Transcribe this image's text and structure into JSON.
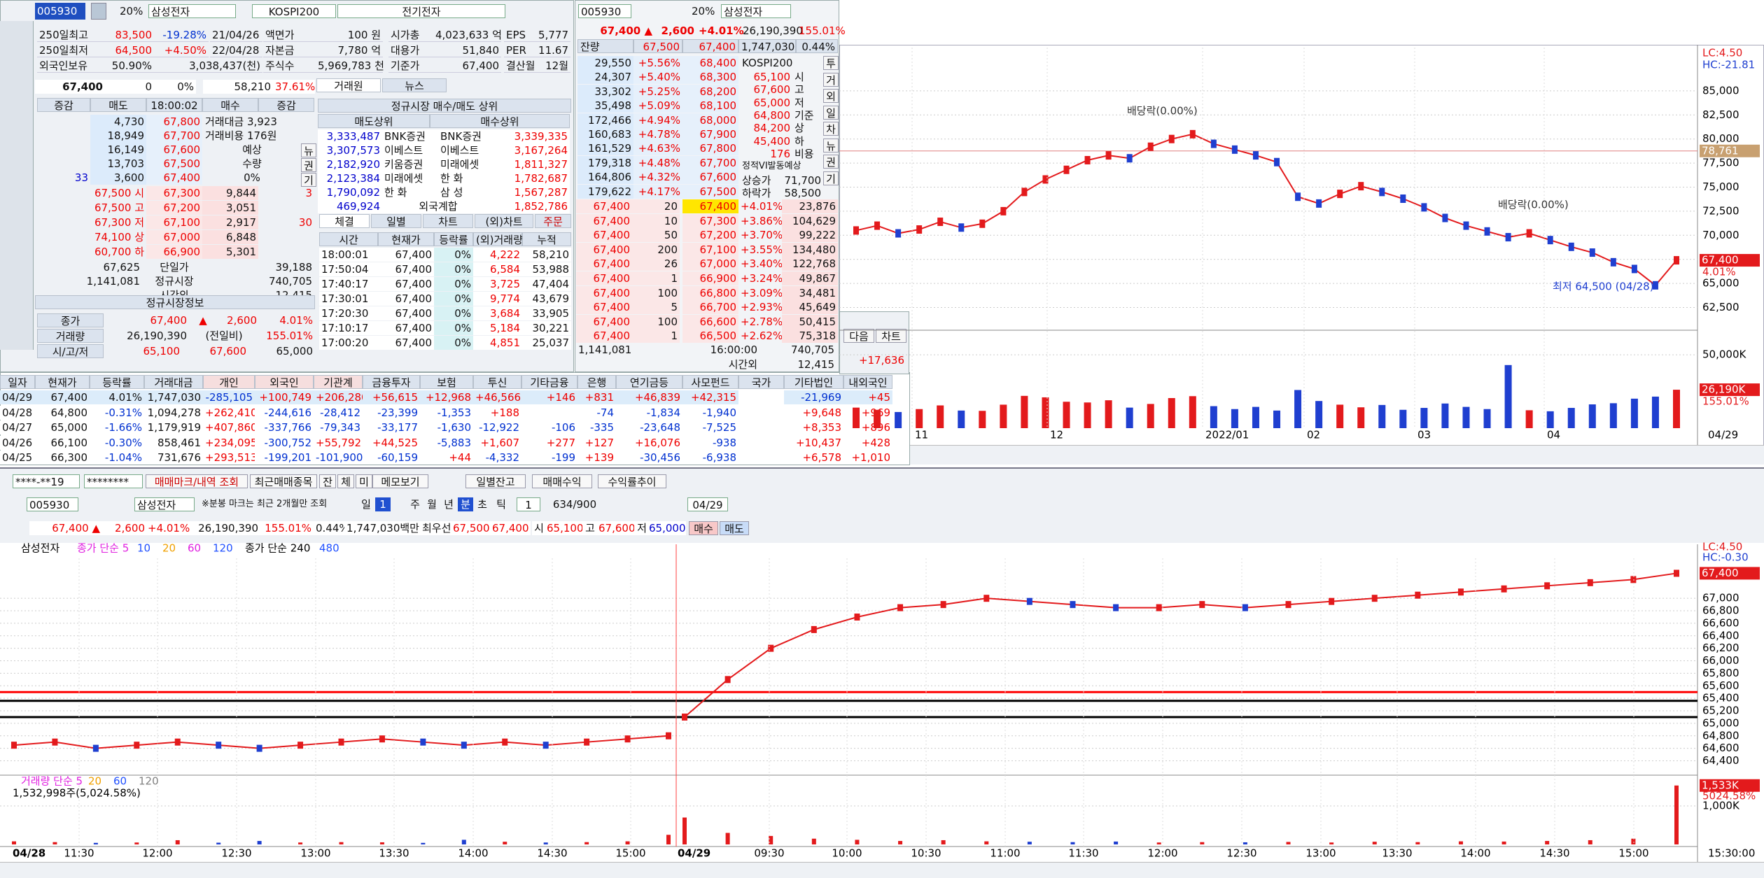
{
  "left_panel": {
    "code": "005930",
    "limit": "20%",
    "name": "삼성전자",
    "index": "KOSPI200",
    "sector": "전기전자",
    "info": [
      [
        "250일최고",
        "83,500",
        "-19.28%",
        "21/04/26",
        "액면가",
        "100 원",
        "시가총",
        "4,023,633 억",
        "EPS",
        "5,777"
      ],
      [
        "250일최저",
        "64,500",
        "+4.50%",
        "22/04/28",
        "자본금",
        "7,780 억",
        "대용가",
        "51,840",
        "PER",
        "11.67"
      ],
      [
        "외국인보유",
        "50.90%",
        "3,038,437(천)",
        "주식수",
        "5,969,783 천",
        "기준가",
        "67,400",
        "결산월",
        "12월"
      ]
    ],
    "quote": [
      "67,400",
      "0",
      "0%",
      "58,210",
      "37.61%"
    ],
    "tabs": [
      "거래원",
      "뉴스"
    ],
    "book_headers": [
      "증감",
      "매도",
      "18:00:02",
      "매수",
      "증감"
    ],
    "asks": [
      [
        null,
        "4,730",
        "67,800"
      ],
      [
        null,
        "18,949",
        "67,700"
      ],
      [
        null,
        "16,149",
        "67,600"
      ],
      [
        null,
        "13,703",
        "67,500"
      ],
      [
        "33",
        "3,600",
        "67,400"
      ]
    ],
    "ask_side": [
      "거래대금 3,923",
      "거래비용 176원",
      "예상",
      "수량",
      "0%"
    ],
    "side_buttons": [
      "뉴",
      "권",
      "기"
    ],
    "bids": [
      [
        "67,500 시",
        "67,300",
        "9,844",
        "3"
      ],
      [
        "67,500 고",
        "67,200",
        "3,051",
        null
      ],
      [
        "67,300 저",
        "67,100",
        "2,917",
        "30"
      ],
      [
        "74,100 상",
        "67,000",
        "6,848",
        null
      ],
      [
        "60,700 하",
        "66,900",
        "5,301",
        null
      ]
    ],
    "book_footer": [
      [
        "67,625",
        "단일가",
        "39,188"
      ],
      [
        "1,141,081",
        "정규시장",
        "740,705"
      ],
      [
        null,
        "시간외",
        "12,415"
      ]
    ],
    "market_title": "정규시장정보",
    "market": [
      [
        "종가",
        "67,400",
        "▲",
        "2,600",
        "4.01%"
      ],
      [
        "거래량",
        "26,190,390",
        "(전일비)",
        "155.01%"
      ],
      [
        "시/고/저",
        "65,100",
        "67,600",
        "65,000"
      ]
    ],
    "broker_title": "정규시장 매수/매도 상위",
    "broker_headers": [
      "매도상위",
      "매수상위"
    ],
    "brokers": [
      [
        "3,333,487",
        "BNK증권",
        "BNK증권",
        "3,339,335"
      ],
      [
        "3,307,573",
        "이베스트",
        "이베스트",
        "3,167,264"
      ],
      [
        "2,182,920",
        "키움증권",
        "미래에셋",
        "1,811,327"
      ],
      [
        "2,123,384",
        "미래에셋",
        "한 화",
        "1,782,687"
      ],
      [
        "1,790,092",
        "한 화",
        "삼 성",
        "1,567,287"
      ]
    ],
    "broker_footer": [
      "469,924",
      "외국계합",
      "1,852,786"
    ],
    "trade_tabs": [
      "체결",
      "일별",
      "차트",
      "(외)차트",
      "주문"
    ],
    "trade_headers": [
      "시간",
      "현재가",
      "등락률",
      "(외)거래량",
      "누적"
    ],
    "trades": [
      [
        "18:00:01",
        "67,400",
        "0%",
        "4,222",
        "58,210"
      ],
      [
        "17:50:04",
        "67,400",
        "0%",
        "6,584",
        "53,988"
      ],
      [
        "17:40:17",
        "67,400",
        "0%",
        "3,725",
        "47,404"
      ],
      [
        "17:30:01",
        "67,400",
        "0%",
        "9,774",
        "43,679"
      ],
      [
        "17:20:30",
        "67,400",
        "0%",
        "3,684",
        "33,905"
      ],
      [
        "17:10:17",
        "67,400",
        "0%",
        "5,184",
        "30,221"
      ],
      [
        "17:00:20",
        "67,400",
        "0%",
        "4,851",
        "25,037"
      ]
    ]
  },
  "order_panel": {
    "code": "005930",
    "limit": "20%",
    "name": "삼성전자",
    "quote": [
      "67,400 ▲",
      "2,600",
      "+4.01%",
      "26,190,390",
      "155.01%"
    ],
    "header": [
      "잔량",
      "67,500",
      "67,400",
      "1,747,030",
      "0.44%"
    ],
    "asks": [
      [
        "29,550",
        "+5.56%",
        "68,400"
      ],
      [
        "24,307",
        "+5.40%",
        "68,300"
      ],
      [
        "33,302",
        "+5.25%",
        "68,200"
      ],
      [
        "35,498",
        "+5.09%",
        "68,100"
      ],
      [
        "172,466",
        "+4.94%",
        "68,000"
      ],
      [
        "160,683",
        "+4.78%",
        "67,900"
      ],
      [
        "161,529",
        "+4.63%",
        "67,800"
      ],
      [
        "179,318",
        "+4.48%",
        "67,700"
      ],
      [
        "164,806",
        "+4.32%",
        "67,600"
      ],
      [
        "179,622",
        "+4.17%",
        "67,500"
      ]
    ],
    "index": "KOSPI200",
    "info": [
      [
        "65,100",
        "시"
      ],
      [
        "67,600",
        "고"
      ],
      [
        "65,000",
        "저"
      ],
      [
        "64,800",
        "기준"
      ],
      [
        "84,200",
        "상"
      ],
      [
        "45,400",
        "하"
      ],
      [
        "176",
        "비용"
      ]
    ],
    "vi_title": "정적VI발동예상",
    "vi": [
      [
        "상승가",
        "71,700"
      ],
      [
        "하락가",
        "58,500"
      ]
    ],
    "side_buttons": [
      "투",
      "거",
      "외",
      "일",
      "차",
      "뉴",
      "권",
      "기"
    ],
    "bids": [
      [
        "67,400",
        "20",
        "67,400",
        "+4.01%",
        "23,876"
      ],
      [
        "67,400",
        "10",
        "67,300",
        "+3.86%",
        "104,629"
      ],
      [
        "67,400",
        "50",
        "67,200",
        "+3.70%",
        "99,222"
      ],
      [
        "67,400",
        "200",
        "67,100",
        "+3.55%",
        "134,480"
      ],
      [
        "67,400",
        "26",
        "67,000",
        "+3.40%",
        "122,768"
      ],
      [
        "67,400",
        "1",
        "66,900",
        "+3.24%",
        "49,867"
      ],
      [
        "67,400",
        "100",
        "66,800",
        "+3.09%",
        "34,481"
      ],
      [
        "67,400",
        "5",
        "66,700",
        "+2.93%",
        "45,649"
      ],
      [
        "67,400",
        "100",
        "66,600",
        "+2.78%",
        "50,415"
      ],
      [
        "67,400",
        "1",
        "66,500",
        "+2.62%",
        "75,318"
      ]
    ],
    "footer": [
      [
        "1,141,081",
        "16:00:00",
        "740,705"
      ],
      [
        null,
        "시간외",
        "12,415"
      ]
    ],
    "buttons": [
      "다음",
      "차트"
    ],
    "extra": "+17,636"
  },
  "investor_table": {
    "headers": [
      "일자",
      "현재가",
      "등락률",
      "거래대금",
      "개인",
      "외국인",
      "기관계",
      "금융투자",
      "보험",
      "투신",
      "기타금융",
      "은행",
      "연기금등",
      "사모펀드",
      "국가",
      "기타법인",
      "내외국인"
    ],
    "rows": [
      [
        "04/29",
        "67,400",
        "4.01%",
        "1,747,030",
        "-285,105",
        "+100,749",
        "+206,280",
        "+56,615",
        "+12,968",
        "+46,566",
        "+146",
        "+831",
        "+46,839",
        "+42,315",
        null,
        "-21,969",
        "+45"
      ],
      [
        "04/28",
        "64,800",
        "-0.31%",
        "1,094,278",
        "+262,410",
        "-244,616",
        "-28,412",
        "-23,399",
        "-1,353",
        "+188",
        null,
        "-74",
        "-1,834",
        "-1,940",
        null,
        "+9,648",
        "+969"
      ],
      [
        "04/27",
        "65,000",
        "-1.66%",
        "1,179,919",
        "+407,860",
        "-337,766",
        "-79,343",
        "-33,177",
        "-1,630",
        "-12,922",
        "-106",
        "-335",
        "-23,648",
        "-7,525",
        null,
        "+8,353",
        "+896"
      ],
      [
        "04/26",
        "66,100",
        "-0.30%",
        "858,461",
        "+234,095",
        "-300,752",
        "+55,792",
        "+44,525",
        "-5,883",
        "+1,607",
        "+277",
        "+127",
        "+16,076",
        "-938",
        null,
        "+10,437",
        "+428"
      ],
      [
        "04/25",
        "66,300",
        "-1.04%",
        "731,676",
        "+293,513",
        "-199,201",
        "-101,900",
        "-60,159",
        "+44",
        "-4,332",
        "-199",
        "+139",
        "-30,456",
        "-6,938",
        null,
        "+6,578",
        "+1,010"
      ]
    ]
  },
  "daily_chart": {
    "type": "line",
    "color": "#e31a1c",
    "lc": "LC:4.50",
    "hc": "HC:-21.81",
    "ylim": [
      60500,
      89500
    ],
    "yticks": [
      {
        "value": 62500,
        "label": "62,500"
      },
      {
        "value": 65000,
        "label": "65,000"
      },
      {
        "value": 67500,
        "label": "67,500"
      },
      {
        "value": 70000,
        "label": "70,000"
      },
      {
        "value": 72500,
        "label": "72,500"
      },
      {
        "value": 75000,
        "label": "75,000"
      },
      {
        "value": 77500,
        "label": "77,500"
      },
      {
        "value": 80000,
        "label": "80,000"
      },
      {
        "value": 82500,
        "label": "82,500"
      },
      {
        "value": 85000,
        "label": "85,000"
      }
    ],
    "values": [
      70500,
      71000,
      70200,
      70600,
      71400,
      70800,
      71200,
      72500,
      74500,
      75800,
      76800,
      77800,
      78300,
      78000,
      79200,
      80000,
      80500,
      79500,
      78900,
      78300,
      77600,
      74000,
      73300,
      74300,
      75100,
      74500,
      73800,
      72900,
      71800,
      71000,
      70400,
      69800,
      70200,
      69500,
      68800,
      68200,
      67200,
      66500,
      64800,
      67400
    ],
    "volume": [
      14000,
      12500,
      11000,
      13000,
      15500,
      12000,
      11800,
      16000,
      22000,
      21000,
      18000,
      17500,
      19000,
      14000,
      16500,
      20500,
      21800,
      15000,
      13000,
      14500,
      12000,
      26000,
      18500,
      16000,
      14200,
      15800,
      12500,
      13800,
      16800,
      14500,
      13000,
      43000,
      12200,
      11500,
      13800,
      16200,
      17000,
      20100,
      21500,
      26190
    ],
    "vol_ylim": [
      0,
      61500
    ],
    "vol_yticks": [
      {
        "value": 50000,
        "label": "50,000K"
      }
    ],
    "vol_last": {
      "value": 26190,
      "label": "26,190K"
    },
    "vol_ratio": "155.01%",
    "price_line": {
      "value": 78761,
      "label": "78,761"
    },
    "last": {
      "value": 67400,
      "label": "67,400"
    },
    "last_change": "4.01%",
    "annotations": [
      "배당락(0.00%)",
      "배당락(0.00%)",
      "최저 64,500 (04/28)"
    ],
    "xlabels": [
      "11",
      "12",
      "2022/01",
      "02",
      "03",
      "04",
      "04/29"
    ]
  },
  "bottom_toolbar": {
    "account": "****-**19",
    "password": "********",
    "buttons1": [
      "매매마크/내역 조회",
      "최근매매종목",
      "잔",
      "체",
      "미",
      "메모보기",
      "일별잔고",
      "매매수익",
      "수익률추이"
    ],
    "code": "005930",
    "name": "삼성전자",
    "note": "※분봉 마크는 최근 2개월만 조회",
    "periods": [
      "일",
      "1",
      "주",
      "월",
      "년",
      "분",
      "초",
      "틱",
      "1"
    ],
    "count": "634/900",
    "date": "04/29",
    "quote": [
      "67,400 ▲",
      "2,600",
      "+4.01%",
      "26,190,390",
      "155.01%",
      "0.44%",
      "1,747,030백만",
      "최우선",
      "67,500",
      "67,400",
      "시",
      "65,100",
      "고",
      "67,600",
      "저",
      "65,000"
    ],
    "trade_buttons": [
      "매수",
      "매도"
    ]
  },
  "intraday_chart": {
    "type": "line",
    "color": "#e31a1c",
    "title": "삼성전자",
    "legend": [
      {
        "text": "종가 단순 5",
        "color": "#e020e0"
      },
      {
        "text": "10",
        "color": "#2050ff"
      },
      {
        "text": "20",
        "color": "#f0a000"
      },
      {
        "text": "60",
        "color": "#e020e0"
      },
      {
        "text": "120",
        "color": "#2050ff"
      },
      {
        "text": "종가 단순 240",
        "color": "#000000"
      },
      {
        "text": "480",
        "color": "#2050ff"
      }
    ],
    "lc": "LC:4.50",
    "hc": "HC:-0.30",
    "last": {
      "value": 67400,
      "label": "67,400"
    },
    "ylim": [
      64260,
      67640
    ],
    "yticks": [
      {
        "value": 64400,
        "label": "64,400"
      },
      {
        "value": 64600,
        "label": "64,600"
      },
      {
        "value": 64800,
        "label": "64,800"
      },
      {
        "value": 65000,
        "label": "65,000"
      },
      {
        "value": 65200,
        "label": "65,200"
      },
      {
        "value": 65400,
        "label": "65,400"
      },
      {
        "value": 65600,
        "label": "65,600"
      },
      {
        "value": 65800,
        "label": "65,800"
      },
      {
        "value": 66000,
        "label": "66,000"
      },
      {
        "value": 66200,
        "label": "66,200"
      },
      {
        "value": 66400,
        "label": "66,400"
      },
      {
        "value": 66600,
        "label": "66,600"
      },
      {
        "value": 66800,
        "label": "66,800"
      },
      {
        "value": 67000,
        "label": "67,000"
      }
    ],
    "hlines": [
      {
        "value": 65500,
        "color": "#ff0000"
      },
      {
        "value": 65360,
        "color": "#000000"
      },
      {
        "value": 65100,
        "color": "#000000"
      }
    ],
    "days": [
      {
        "date": "04/28",
        "values": [
          64650,
          64700,
          64600,
          64650,
          64700,
          64650,
          64600,
          64650,
          64700,
          64750,
          64700,
          64650,
          64700,
          64650,
          64700,
          64750,
          64800
        ],
        "volume": [
          80000,
          60000,
          40000,
          50000,
          110000,
          45000,
          90000,
          50000,
          60000,
          55000,
          40000,
          120000,
          70000,
          50000,
          60000,
          80000,
          250000
        ]
      },
      {
        "date": "04/29",
        "values": [
          65100,
          65700,
          66200,
          66500,
          66700,
          66850,
          66900,
          67000,
          66950,
          66900,
          66850,
          66850,
          66900,
          66850,
          66900,
          66950,
          67000,
          67050,
          67100,
          67150,
          67200,
          67250,
          67300,
          67400
        ],
        "volume": [
          700000,
          300000,
          220000,
          150000,
          120000,
          90000,
          110000,
          80000,
          70000,
          60000,
          75000,
          50000,
          60000,
          55000,
          65000,
          50000,
          70000,
          60000,
          80000,
          75000,
          90000,
          110000,
          150000,
          1532998
        ]
      }
    ],
    "vol_legend": [
      {
        "text": "거래량 단순 5",
        "color": "#e020e0"
      },
      {
        "text": "20",
        "color": "#f0a000"
      },
      {
        "text": "60",
        "color": "#2050ff"
      },
      {
        "text": "120",
        "color": "#808080"
      }
    ],
    "vol_info": "1,532,998주(5,024.58%)",
    "vol_ylim": [
      0,
      1620000
    ],
    "vol_yticks": [
      {
        "value": 1000000,
        "label": "1,000K"
      }
    ],
    "vol_last": {
      "value": 1532998,
      "label": "1,533K"
    },
    "vol_ratio": "5024.58%",
    "times": [
      "11:30",
      "12:00",
      "12:30",
      "13:00",
      "13:30",
      "14:00",
      "14:30",
      "15:00",
      "09:30",
      "10:00",
      "10:30",
      "11:00",
      "11:30",
      "12:00",
      "12:30",
      "13:00",
      "13:30",
      "14:00",
      "14:30",
      "15:00",
      "15:30:00"
    ]
  }
}
